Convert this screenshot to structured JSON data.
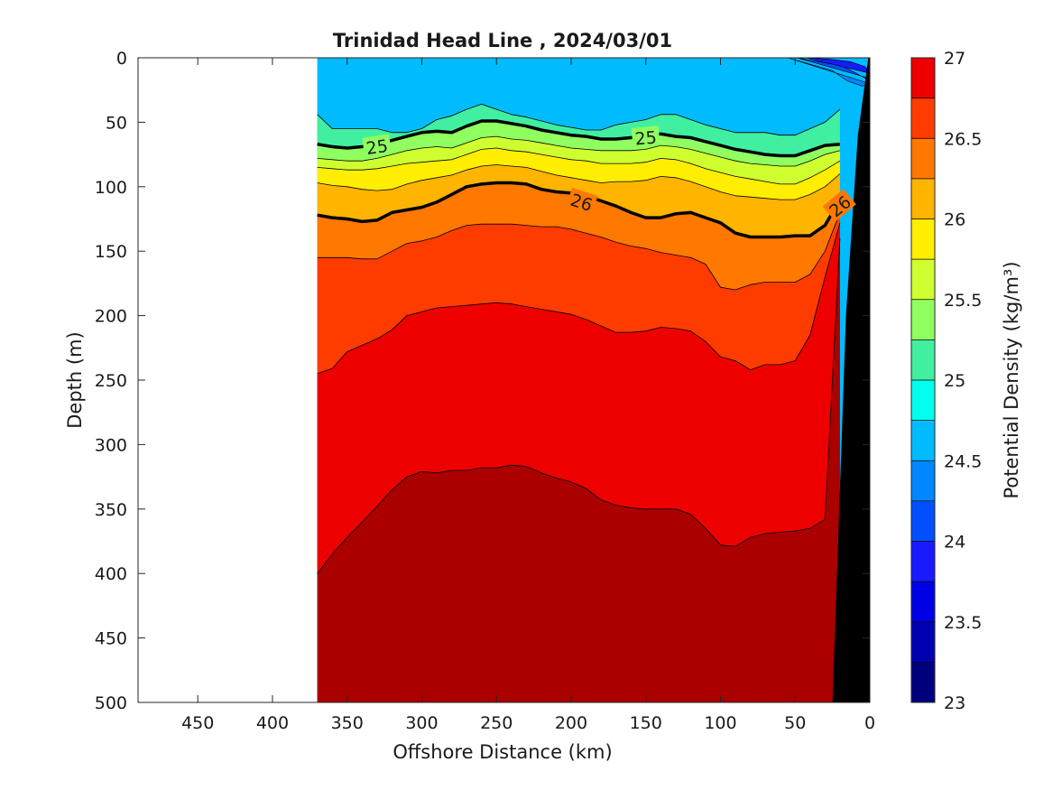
{
  "chart_data": {
    "type": "filled-contour",
    "title": "Trinidad Head Line , 2024/03/01",
    "xlabel": "Offshore Distance (km)",
    "ylabel": "Depth (m)",
    "xlim": [
      490,
      0
    ],
    "ylim": [
      0,
      500
    ],
    "x_reversed": true,
    "y_reversed": true,
    "xticks": [
      450,
      400,
      350,
      300,
      250,
      200,
      150,
      100,
      50,
      0
    ],
    "yticks": [
      0,
      50,
      100,
      150,
      200,
      250,
      300,
      350,
      400,
      450,
      500
    ],
    "data_extent_km": [
      370,
      0
    ],
    "colorbar": {
      "label": "Potential Density (kg/m³)",
      "min": 23,
      "max": 27,
      "step": 0.25,
      "tick_values": [
        23,
        23.5,
        24,
        24.5,
        25,
        25.5,
        26,
        26.5,
        27
      ],
      "tick_labels": [
        "23",
        "23.5",
        "24",
        "24.5",
        "25",
        "25.5",
        "26",
        "26.5",
        "27"
      ],
      "colors": [
        "#00007f",
        "#0000b3",
        "#0000e6",
        "#1a1aff",
        "#0050ff",
        "#0087ff",
        "#00bcff",
        "#00ffee",
        "#40f0a0",
        "#90ff60",
        "#d0ff30",
        "#ffee00",
        "#ffb400",
        "#ff7800",
        "#ff3c00",
        "#ee0000",
        "#aa0000"
      ]
    },
    "contour_lines": {
      "x": [
        370,
        360,
        350,
        340,
        330,
        320,
        310,
        300,
        290,
        280,
        270,
        260,
        250,
        240,
        230,
        220,
        210,
        200,
        190,
        180,
        170,
        160,
        150,
        140,
        130,
        120,
        110,
        100,
        90,
        80,
        70,
        60,
        50,
        40,
        30,
        20
      ],
      "levels": [
        {
          "value": 24.75,
          "depth": [
            44,
            55,
            55,
            55,
            55,
            58,
            58,
            55,
            48,
            45,
            40,
            36,
            40,
            44,
            46,
            49,
            52,
            54,
            56,
            56,
            52,
            50,
            48,
            44,
            44,
            48,
            52,
            55,
            58,
            58,
            58,
            60,
            60,
            55,
            50,
            40
          ]
        },
        {
          "value": 25.0,
          "depth": [
            67,
            69,
            70,
            69,
            67,
            64,
            61,
            58,
            57,
            58,
            53,
            49,
            49,
            51,
            53,
            56,
            58,
            60,
            61,
            63,
            63,
            62,
            61,
            59,
            61,
            62,
            65,
            68,
            71,
            73,
            75,
            76,
            76,
            72,
            68,
            67
          ]
        },
        {
          "value": 25.25,
          "depth": [
            78,
            79,
            80,
            80,
            78,
            75,
            72,
            70,
            69,
            70,
            66,
            62,
            61,
            63,
            64,
            66,
            68,
            70,
            71,
            72,
            72,
            72,
            71,
            68,
            69,
            71,
            74,
            77,
            80,
            82,
            83,
            84,
            84,
            80,
            75,
            72
          ]
        },
        {
          "value": 25.5,
          "depth": [
            85,
            86,
            87,
            87,
            86,
            84,
            82,
            81,
            80,
            79,
            75,
            71,
            70,
            72,
            73,
            75,
            77,
            79,
            80,
            82,
            82,
            82,
            81,
            78,
            79,
            82,
            86,
            89,
            92,
            94,
            96,
            98,
            98,
            93,
            87,
            80
          ]
        },
        {
          "value": 25.75,
          "depth": [
            97,
            99,
            100,
            102,
            103,
            102,
            98,
            95,
            93,
            91,
            87,
            84,
            83,
            84,
            85,
            88,
            91,
            93,
            95,
            97,
            96,
            96,
            95,
            92,
            93,
            96,
            100,
            104,
            107,
            108,
            109,
            110,
            110,
            106,
            100,
            90
          ]
        },
        {
          "value": 26.0,
          "depth": [
            122,
            124,
            125,
            127,
            126,
            120,
            118,
            116,
            112,
            106,
            100,
            98,
            97,
            97,
            98,
            102,
            104,
            105,
            107,
            111,
            115,
            120,
            124,
            124,
            121,
            120,
            124,
            128,
            136,
            139,
            139,
            139,
            138,
            138,
            130,
            110
          ]
        },
        {
          "value": 26.25,
          "depth": [
            155,
            155,
            155,
            156,
            156,
            150,
            144,
            142,
            139,
            134,
            130,
            129,
            129,
            129,
            130,
            131,
            131,
            133,
            136,
            139,
            143,
            146,
            148,
            151,
            153,
            155,
            160,
            178,
            180,
            176,
            174,
            174,
            174,
            168,
            150,
            120
          ]
        },
        {
          "value": 26.5,
          "depth": [
            245,
            241,
            228,
            223,
            218,
            211,
            200,
            197,
            194,
            193,
            192,
            191,
            190,
            191,
            193,
            195,
            197,
            199,
            203,
            208,
            213,
            213,
            212,
            209,
            210,
            212,
            220,
            232,
            235,
            242,
            238,
            238,
            235,
            215,
            170,
            128
          ]
        },
        {
          "value": 26.75,
          "depth": [
            400,
            385,
            372,
            360,
            348,
            335,
            325,
            321,
            322,
            320,
            320,
            318,
            318,
            316,
            317,
            322,
            326,
            329,
            334,
            343,
            347,
            349,
            350,
            350,
            350,
            354,
            365,
            378,
            379,
            372,
            369,
            368,
            367,
            365,
            358,
            140
          ]
        }
      ]
    },
    "contour_labels": [
      {
        "text": "25",
        "x": 330,
        "depth": 69,
        "angle": -8
      },
      {
        "text": "25",
        "x": 150,
        "depth": 62,
        "angle": -5
      },
      {
        "text": "26",
        "x": 193,
        "depth": 112,
        "angle": 18
      },
      {
        "text": "26",
        "x": 20,
        "depth": 115,
        "angle": -40
      }
    ],
    "surface_feature": {
      "x": [
        40,
        20,
        10,
        5,
        0
      ],
      "depth": [
        0,
        0,
        0,
        0,
        0
      ]
    },
    "bottom_topography": {
      "x": [
        0,
        10,
        15,
        20,
        25,
        30
      ],
      "depth": [
        0,
        50,
        200,
        400,
        500,
        500
      ]
    }
  }
}
